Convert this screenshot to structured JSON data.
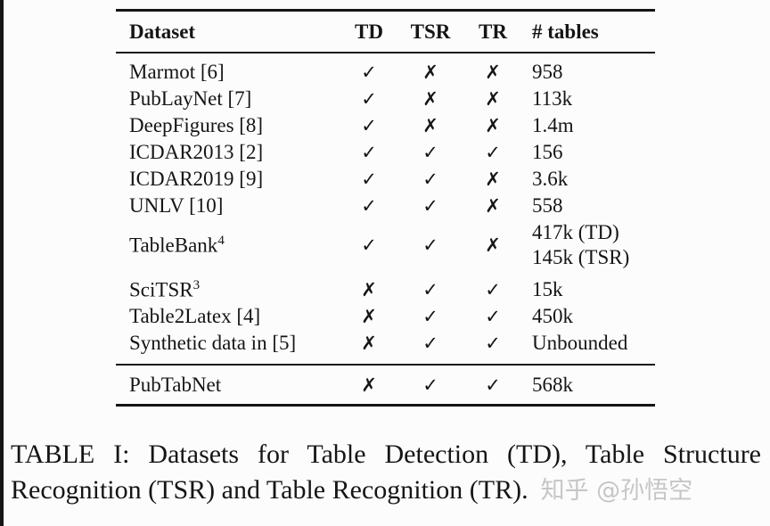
{
  "table": {
    "headers": {
      "dataset": "Dataset",
      "td": "TD",
      "tsr": "TSR",
      "tr": "TR",
      "tables": "# tables"
    },
    "rows": [
      {
        "dataset": "Marmot [6]",
        "td": "✓",
        "tsr": "✗",
        "tr": "✗",
        "tables": "958"
      },
      {
        "dataset": "PubLayNet [7]",
        "td": "✓",
        "tsr": "✗",
        "tr": "✗",
        "tables": "113k"
      },
      {
        "dataset": "DeepFigures [8]",
        "td": "✓",
        "tsr": "✗",
        "tr": "✗",
        "tables": "1.4m"
      },
      {
        "dataset": "ICDAR2013 [2]",
        "td": "✓",
        "tsr": "✓",
        "tr": "✓",
        "tables": "156"
      },
      {
        "dataset": "ICDAR2019 [9]",
        "td": "✓",
        "tsr": "✓",
        "tr": "✗",
        "tables": "3.6k"
      },
      {
        "dataset": "UNLV [10]",
        "td": "✓",
        "tsr": "✓",
        "tr": "✗",
        "tables": "558"
      },
      {
        "dataset": "TableBank",
        "sup": "4",
        "td": "✓",
        "tsr": "✓",
        "tr": "✗",
        "tables": "417k (TD)",
        "tables2": "145k (TSR)"
      },
      {
        "dataset": "SciTSR",
        "sup": "3",
        "td": "✗",
        "tsr": "✓",
        "tr": "✓",
        "tables": "15k"
      },
      {
        "dataset": "Table2Latex [4]",
        "td": "✗",
        "tsr": "✓",
        "tr": "✓",
        "tables": "450k"
      },
      {
        "dataset": "Synthetic data in [5]",
        "td": "✗",
        "tsr": "✓",
        "tr": "✓",
        "tables": "Unbounded"
      },
      {
        "dataset": "PubTabNet",
        "td": "✗",
        "tsr": "✓",
        "tr": "✓",
        "tables": "568k"
      }
    ]
  },
  "caption": {
    "line1": "TABLE I: Datasets for Table Detection (TD), Table Structure",
    "line2": "Recognition (TSR) and Table Recognition (TR)."
  },
  "watermark": "知乎 @孙悟空",
  "colors": {
    "text": "#151515",
    "rule": "#151515",
    "watermark": "#c6c6c6",
    "background": "#fcfcfc"
  }
}
